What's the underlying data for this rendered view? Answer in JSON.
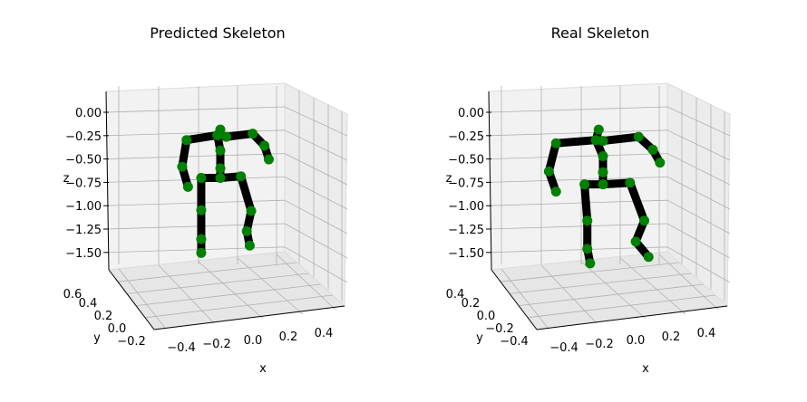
{
  "chart_data": [
    {
      "type": "scatter",
      "subtype": "3d-skeleton",
      "title": "Predicted Skeleton",
      "xlabel": "x",
      "ylabel": "y",
      "zlabel": "z",
      "x_ticks": [
        "−0.4",
        "−0.2",
        "0.0",
        "0.2",
        "0.4"
      ],
      "y_ticks": [
        "−0.2",
        "0.0",
        "0.2",
        "0.4",
        "0.6"
      ],
      "z_ticks": [
        "0.00",
        "−0.25",
        "−0.50",
        "−0.75",
        "−1.00",
        "−1.25",
        "−1.50"
      ],
      "joint_color": "#008000",
      "bone_color": "#000000",
      "grid": true,
      "joints": [
        {
          "x": -0.23,
          "z": -0.3
        },
        {
          "x": -0.26,
          "z": -0.63
        },
        {
          "x": -0.22,
          "z": -0.88
        },
        {
          "x": -0.02,
          "z": -0.24
        },
        {
          "x": 0.0,
          "z": -0.17
        },
        {
          "x": 0.04,
          "z": -0.26
        },
        {
          "x": 0.0,
          "z": -0.43
        },
        {
          "x": 0.0,
          "z": -0.65
        },
        {
          "x": 0.0,
          "z": -0.77
        },
        {
          "x": -0.13,
          "z": -0.77
        },
        {
          "x": -0.13,
          "z": -1.17
        },
        {
          "x": -0.13,
          "z": -1.53
        },
        {
          "x": -0.13,
          "z": -1.7
        },
        {
          "x": 0.14,
          "z": -0.75
        },
        {
          "x": 0.21,
          "z": -1.18
        },
        {
          "x": 0.18,
          "z": -1.43
        },
        {
          "x": 0.2,
          "z": -1.61
        },
        {
          "x": 0.22,
          "z": -0.22
        },
        {
          "x": 0.3,
          "z": -0.37
        },
        {
          "x": 0.33,
          "z": -0.54
        }
      ],
      "bones": [
        [
          0,
          1
        ],
        [
          1,
          2
        ],
        [
          0,
          3
        ],
        [
          3,
          4
        ],
        [
          3,
          5
        ],
        [
          5,
          17
        ],
        [
          17,
          18
        ],
        [
          18,
          19
        ],
        [
          3,
          6
        ],
        [
          6,
          7
        ],
        [
          7,
          8
        ],
        [
          8,
          9
        ],
        [
          9,
          10
        ],
        [
          10,
          11
        ],
        [
          11,
          12
        ],
        [
          8,
          13
        ],
        [
          13,
          14
        ],
        [
          14,
          15
        ],
        [
          15,
          16
        ]
      ]
    },
    {
      "type": "scatter",
      "subtype": "3d-skeleton",
      "title": "Real Skeleton",
      "xlabel": "x",
      "ylabel": "y",
      "zlabel": "z",
      "x_ticks": [
        "−0.4",
        "−0.2",
        "0.0",
        "0.2",
        "0.4"
      ],
      "y_ticks": [
        "−0.4",
        "−0.2",
        "0.0",
        "0.2",
        "0.4"
      ],
      "z_ticks": [
        "0.00",
        "−0.25",
        "−0.50",
        "−0.75",
        "−1.00",
        "−1.25",
        "−1.50"
      ],
      "joint_color": "#008000",
      "bone_color": "#000000",
      "grid": true,
      "joints": [
        {
          "x": -0.33,
          "z": -0.34
        },
        {
          "x": -0.38,
          "z": -0.69
        },
        {
          "x": -0.33,
          "z": -0.94
        },
        {
          "x": -0.05,
          "z": -0.3
        },
        {
          "x": -0.03,
          "z": -0.17
        },
        {
          "x": 0.0,
          "z": -0.31
        },
        {
          "x": 0.0,
          "z": -0.5
        },
        {
          "x": 0.0,
          "z": -0.7
        },
        {
          "x": 0.0,
          "z": -0.85
        },
        {
          "x": -0.13,
          "z": -0.85
        },
        {
          "x": -0.11,
          "z": -1.3
        },
        {
          "x": -0.11,
          "z": -1.65
        },
        {
          "x": -0.09,
          "z": -1.83
        },
        {
          "x": 0.19,
          "z": -0.83
        },
        {
          "x": 0.29,
          "z": -1.3
        },
        {
          "x": 0.23,
          "z": -1.56
        },
        {
          "x": 0.32,
          "z": -1.75
        },
        {
          "x": 0.25,
          "z": -0.26
        },
        {
          "x": 0.35,
          "z": -0.42
        },
        {
          "x": 0.4,
          "z": -0.58
        }
      ],
      "bones": [
        [
          0,
          1
        ],
        [
          1,
          2
        ],
        [
          0,
          3
        ],
        [
          3,
          4
        ],
        [
          3,
          5
        ],
        [
          5,
          17
        ],
        [
          17,
          18
        ],
        [
          18,
          19
        ],
        [
          3,
          6
        ],
        [
          6,
          7
        ],
        [
          7,
          8
        ],
        [
          8,
          9
        ],
        [
          9,
          10
        ],
        [
          10,
          11
        ],
        [
          11,
          12
        ],
        [
          8,
          13
        ],
        [
          13,
          14
        ],
        [
          14,
          15
        ],
        [
          15,
          16
        ]
      ]
    }
  ]
}
